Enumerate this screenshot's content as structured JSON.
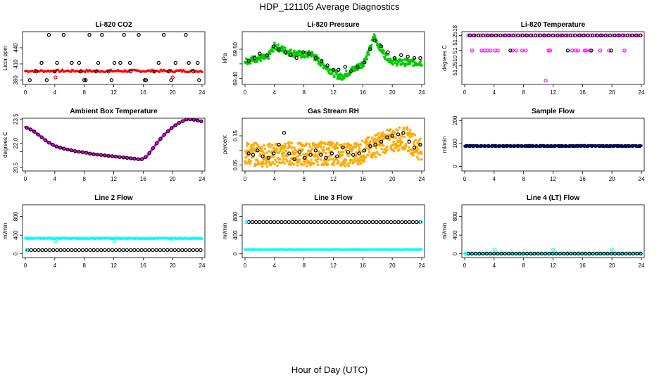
{
  "figure": {
    "title": "HDP_121105  Average Diagnostics",
    "xlabel": "Hour of Day (UTC)"
  },
  "chart_data": [
    {
      "type": "scatter",
      "title": "Li-820 CO2",
      "ylabel": "Licor ppm",
      "xlim": [
        0,
        24
      ],
      "ylim": [
        372,
        470
      ],
      "xticks": [
        0,
        4,
        8,
        12,
        16,
        20,
        24
      ],
      "yticks": [
        380,
        410,
        440
      ],
      "series": [
        {
          "color": "#ff0000",
          "marker": "dot",
          "pattern": "band",
          "values": {
            "center": 397,
            "halfwidth": 2,
            "count": 125,
            "noise": 1
          }
        },
        {
          "color": "#000000",
          "marker": "circle",
          "x": [
            0.6,
            1.5,
            2.2,
            3.2,
            4.0,
            5.2,
            6.3,
            7.5,
            8.0,
            8.7,
            9.6,
            10.4,
            11.3,
            12.1,
            13.4,
            14.3,
            15.4,
            16.2,
            17.5,
            18.8,
            19.5,
            20.4,
            21.8,
            22.8,
            23.6
          ],
          "y": [
            380,
            396,
            412,
            464,
            396,
            464,
            412,
            396,
            380,
            464,
            396,
            464,
            396,
            412,
            464,
            396,
            464,
            380,
            396,
            464,
            396,
            412,
            464,
            396,
            380
          ]
        },
        {
          "color": "#000000",
          "marker": "circle",
          "x": [
            2.9,
            4.3,
            7.3,
            8.2,
            9.9,
            11.7,
            12.9,
            14.2,
            16.4,
            18.1,
            19.8,
            22.2,
            23.4
          ],
          "y": [
            380,
            412,
            412,
            380,
            412,
            380,
            412,
            412,
            380,
            412,
            380,
            412,
            412
          ]
        },
        {
          "color": "#ff0000",
          "marker": "circle",
          "x": [
            4.1,
            20.0
          ],
          "y": [
            385,
            385
          ]
        }
      ]
    },
    {
      "type": "scatter",
      "title": "Li-820 Pressure",
      "ylabel": "kPa",
      "xlim": [
        0,
        24
      ],
      "ylim": [
        69.38,
        69.56
      ],
      "xticks": [
        0,
        4,
        8,
        12,
        16,
        20,
        24
      ],
      "yticks": [
        69.4,
        69.45,
        69.5
      ],
      "ytick_labels": [
        "69.40",
        "",
        "69.50"
      ],
      "series": [
        {
          "color": "#00cc00",
          "marker": "dot",
          "pattern": "band",
          "anchors_x": [
            0,
            1,
            2,
            3,
            4,
            6,
            8,
            9,
            10,
            11,
            12,
            13,
            14,
            15,
            16,
            17,
            17.5,
            18,
            19,
            20,
            21,
            22,
            23,
            24
          ],
          "anchors_y": [
            69.46,
            69.465,
            69.47,
            69.47,
            69.51,
            69.49,
            69.48,
            69.485,
            69.46,
            69.44,
            69.42,
            69.405,
            69.42,
            69.435,
            69.45,
            69.5,
            69.545,
            69.52,
            69.48,
            69.46,
            69.455,
            69.455,
            69.455,
            69.455
          ],
          "halfwidth": 0.012,
          "count": 420
        },
        {
          "color": "#000000",
          "marker": "circle",
          "x": [
            0.5,
            1.3,
            2.0,
            3.0,
            3.9,
            4.6,
            5.5,
            6.2,
            7.0,
            7.9,
            8.7,
            9.6,
            10.4,
            11.2,
            12.0,
            12.7,
            13.6,
            14.4,
            15.3,
            16.2,
            17.0,
            17.6,
            18.5,
            19.4,
            20.3,
            21.2,
            22.1,
            23.0,
            23.8
          ],
          "y": [
            69.46,
            69.47,
            69.485,
            69.48,
            69.51,
            69.5,
            69.49,
            69.48,
            69.47,
            69.49,
            69.485,
            69.47,
            69.46,
            69.445,
            69.43,
            69.43,
            69.44,
            69.425,
            69.44,
            69.455,
            69.5,
            69.53,
            69.51,
            69.49,
            69.47,
            69.48,
            69.475,
            69.47,
            69.47
          ]
        }
      ]
    },
    {
      "type": "scatter",
      "title": "Li-820 Temperature",
      "ylabel": "degrees C",
      "xlim": [
        0,
        24
      ],
      "ylim": [
        51.2505,
        51.2519
      ],
      "xticks": [
        0,
        4,
        8,
        12,
        16,
        20,
        24
      ],
      "yticks": [
        51.251,
        51.2514,
        51.2518
      ],
      "ytick_labels": [
        "51.2510",
        "51",
        "51.2518"
      ],
      "series": [
        {
          "color": "#ff00ff",
          "marker": "circle",
          "pattern": "row",
          "y_level": 51.2518,
          "x_from": 0.5,
          "x_to": 23.8,
          "count": 70
        },
        {
          "color": "#000000",
          "marker": "circle",
          "pattern": "row",
          "y_level": 51.2518,
          "x_from": 0.7,
          "x_to": 23.9,
          "count": 40
        },
        {
          "color": "#ff00ff",
          "marker": "circle",
          "x": [
            1.0,
            2.3,
            2.7,
            3.1,
            3.5,
            4.1,
            4.5,
            6.5,
            7.0,
            7.8,
            8.3,
            11.4,
            11.6,
            14.6,
            15.1,
            15.4,
            16.3,
            16.5,
            17.0,
            18.4,
            19.6,
            21.7
          ],
          "y": [
            51.2514,
            51.2514,
            51.2514,
            51.2514,
            51.2514,
            51.2514,
            51.2514,
            51.2514,
            51.2514,
            51.2514,
            51.2514,
            51.2514,
            51.2514,
            51.2514,
            51.2514,
            51.2514,
            51.2514,
            51.2514,
            51.2514,
            51.2514,
            51.2514,
            51.2514
          ]
        },
        {
          "color": "#000000",
          "marker": "circle",
          "x": [
            6.2,
            14.0,
            17.2,
            19.9
          ],
          "y": [
            51.2514,
            51.2514,
            51.2514,
            51.2514
          ]
        },
        {
          "color": "#ff00ff",
          "marker": "circle",
          "x": [
            11.0
          ],
          "y": [
            51.2506
          ]
        }
      ]
    },
    {
      "type": "scatter",
      "title": "Ambient Box Temperature",
      "ylabel": "degrees C",
      "xlim": [
        0,
        24
      ],
      "ylim": [
        20.3,
        23.55
      ],
      "xticks": [
        0,
        4,
        8,
        12,
        16,
        20,
        24
      ],
      "yticks": [
        20.5,
        21.5,
        22.0,
        23.5
      ],
      "ytick_labels": [
        "20.5",
        "",
        "22.0",
        "23.5"
      ],
      "series": [
        {
          "color": "#ff00ff",
          "marker": "dot",
          "pattern": "curve",
          "anchors_x": [
            0,
            1,
            2,
            3,
            4,
            5,
            6,
            7,
            8,
            9,
            10,
            11,
            12,
            13,
            14,
            15,
            15.7,
            16.5,
            17,
            18,
            19,
            20,
            21,
            22,
            23,
            24
          ],
          "anchors_y": [
            23.0,
            22.8,
            22.45,
            22.1,
            21.85,
            21.7,
            21.6,
            21.5,
            21.45,
            21.35,
            21.3,
            21.25,
            21.2,
            21.15,
            21.1,
            21.05,
            21.0,
            21.2,
            21.5,
            22.1,
            22.6,
            23.0,
            23.3,
            23.5,
            23.45,
            23.35
          ],
          "count": 200
        },
        {
          "color": "#000000",
          "marker": "circle",
          "pattern": "curve_sample",
          "count": 48
        }
      ]
    },
    {
      "type": "scatter",
      "title": "Gas Stream RH",
      "ylabel": "percent",
      "xlim": [
        0,
        24
      ],
      "ylim": [
        0.03,
        0.21
      ],
      "xticks": [
        0,
        4,
        8,
        12,
        16,
        20,
        24
      ],
      "yticks": [
        0.05,
        0.1,
        0.15
      ],
      "ytick_labels": [
        "0.05",
        "",
        "0.15"
      ],
      "series": [
        {
          "color": "#ffaa00",
          "marker": "dot",
          "pattern": "band",
          "anchors_x": [
            0,
            2,
            4,
            6,
            8,
            10,
            12,
            14,
            16,
            17,
            18,
            19,
            20,
            21,
            22,
            23,
            24
          ],
          "anchors_y": [
            0.09,
            0.085,
            0.085,
            0.09,
            0.085,
            0.09,
            0.09,
            0.085,
            0.095,
            0.11,
            0.12,
            0.13,
            0.135,
            0.14,
            0.14,
            0.12,
            0.1
          ],
          "halfwidth": 0.04,
          "count": 650
        },
        {
          "color": "#000000",
          "marker": "circle",
          "x": [
            0.5,
            1.1,
            1.7,
            2.4,
            3.2,
            3.9,
            4.6,
            5.3,
            6.0,
            6.7,
            7.4,
            8.1,
            8.9,
            9.6,
            10.3,
            11.0,
            11.8,
            12.5,
            13.3,
            14.0,
            14.7,
            15.5,
            16.2,
            17.0,
            17.7,
            18.5,
            19.3,
            20.0,
            20.8,
            21.5,
            22.3,
            23.0,
            23.8
          ],
          "y": [
            0.09,
            0.085,
            0.1,
            0.08,
            0.075,
            0.09,
            0.12,
            0.16,
            0.09,
            0.07,
            0.095,
            0.075,
            0.085,
            0.1,
            0.085,
            0.075,
            0.09,
            0.08,
            0.11,
            0.095,
            0.085,
            0.09,
            0.1,
            0.115,
            0.12,
            0.13,
            0.145,
            0.15,
            0.155,
            0.16,
            0.13,
            0.11,
            0.12
          ]
        }
      ]
    },
    {
      "type": "scatter",
      "title": "Sample Flow",
      "ylabel": "ml/min",
      "xlim": [
        0,
        24
      ],
      "ylim": [
        -20,
        210
      ],
      "xticks": [
        0,
        4,
        8,
        12,
        16,
        20,
        24
      ],
      "yticks": [
        0,
        100,
        200
      ],
      "series": [
        {
          "color": "#0000cc",
          "marker": "dot",
          "pattern": "band",
          "anchors_x": [
            0,
            24
          ],
          "anchors_y": [
            89,
            89
          ],
          "halfwidth": 3,
          "count": 300
        },
        {
          "color": "#000000",
          "marker": "circle",
          "pattern": "row",
          "y_level": 89,
          "x_from": 0.2,
          "x_to": 23.8,
          "count": 48
        }
      ]
    },
    {
      "type": "scatter",
      "title": "Line 2 Flow",
      "ylabel": "ml/min",
      "xlim": [
        0,
        24
      ],
      "ylim": [
        -80,
        1050
      ],
      "xticks": [
        0,
        4,
        8,
        12,
        16,
        20,
        24
      ],
      "yticks": [
        0,
        400,
        800
      ],
      "series": [
        {
          "color": "#00ffff",
          "marker": "dot",
          "pattern": "band",
          "anchors_x": [
            0,
            24
          ],
          "anchors_y": [
            330,
            330
          ],
          "halfwidth": 8,
          "count": 260
        },
        {
          "color": "#00ffff",
          "marker": "circle",
          "x": [
            0.2,
            4.1,
            12.1,
            19.8
          ],
          "y": [
            330,
            270,
            270,
            300
          ]
        },
        {
          "color": "#000000",
          "marker": "circle",
          "pattern": "row",
          "y_level": 80,
          "x_from": 0.3,
          "x_to": 23.8,
          "count": 48
        },
        {
          "color": "#00ffff",
          "marker": "circle",
          "x": [
            0.2
          ],
          "y": [
            80
          ]
        }
      ]
    },
    {
      "type": "scatter",
      "title": "Line 3 Flow",
      "ylabel": "ml/min",
      "xlim": [
        0,
        24
      ],
      "ylim": [
        -80,
        1050
      ],
      "xticks": [
        0,
        4,
        8,
        12,
        16,
        20,
        24
      ],
      "yticks": [
        0,
        400,
        800
      ],
      "series": [
        {
          "color": "#00ffff",
          "marker": "dot",
          "pattern": "band",
          "anchors_x": [
            0,
            24
          ],
          "anchors_y": [
            90,
            90
          ],
          "halfwidth": 6,
          "count": 260
        },
        {
          "color": "#000000",
          "marker": "circle",
          "pattern": "row",
          "y_level": 680,
          "x_from": 0.5,
          "x_to": 23.8,
          "count": 48
        },
        {
          "color": "#00ffff",
          "marker": "circle",
          "x": [
            0.2,
            23.9
          ],
          "y": [
            680,
            680
          ]
        }
      ]
    },
    {
      "type": "scatter",
      "title": "Line 4 (LT) Flow",
      "ylabel": "ml/min",
      "xlim": [
        0,
        24
      ],
      "ylim": [
        -80,
        1050
      ],
      "xticks": [
        0,
        4,
        8,
        12,
        16,
        20,
        24
      ],
      "yticks": [
        0,
        400,
        800
      ],
      "series": [
        {
          "color": "#00ffff",
          "marker": "dot",
          "pattern": "band",
          "anchors_x": [
            0,
            24
          ],
          "anchors_y": [
            5,
            5
          ],
          "halfwidth": 4,
          "count": 120
        },
        {
          "color": "#000000",
          "marker": "circle",
          "pattern": "row",
          "y_level": 5,
          "x_from": 0.5,
          "x_to": 23.9,
          "count": 48
        },
        {
          "color": "#00ffff",
          "marker": "circle",
          "x": [
            0.1,
            4.1,
            12.0,
            20.0
          ],
          "y": [
            5,
            90,
            90,
            90
          ]
        }
      ]
    }
  ]
}
